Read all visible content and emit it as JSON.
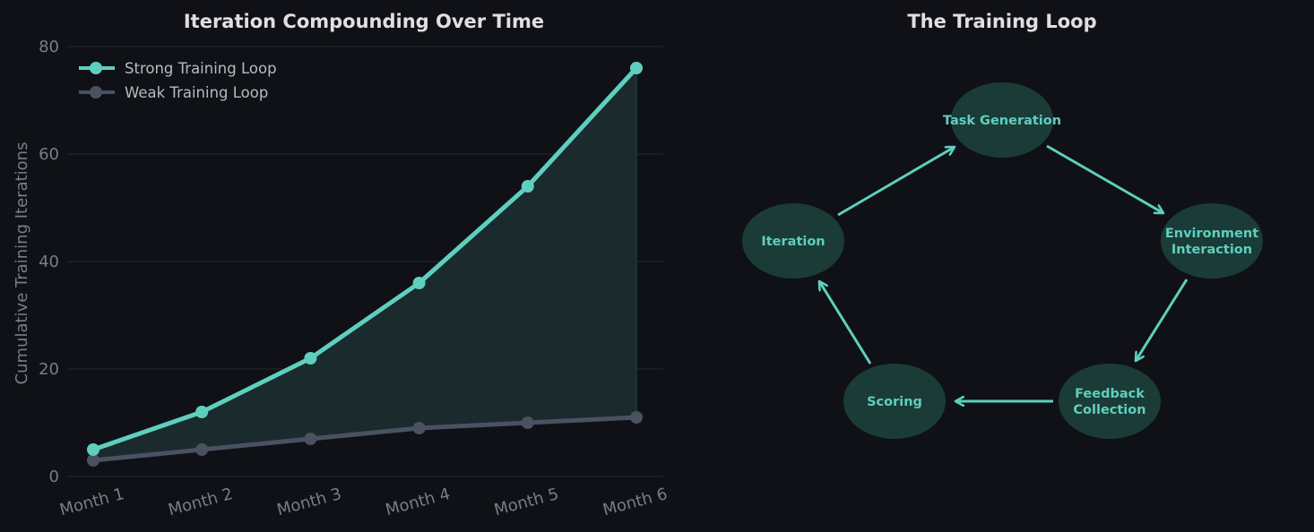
{
  "colors": {
    "background": "#0f1116",
    "strong": "#5ecfbf",
    "weak": "#4a5262",
    "fill": "#1a2a2d",
    "grid": "#22252b",
    "node_fill": "#1b3b36",
    "node_text": "#5ecfbf",
    "arrow": "#5ecfbf"
  },
  "left_chart": {
    "title": "Iteration Compounding Over Time",
    "ylabel": "Cumulative Training Iterations",
    "yticks": [
      "0",
      "20",
      "40",
      "60",
      "80"
    ],
    "xticks": [
      "Month 1",
      "Month 2",
      "Month 3",
      "Month 4",
      "Month 5",
      "Month 6"
    ],
    "legend": [
      "Strong Training Loop",
      "Weak Training Loop"
    ]
  },
  "right_diagram": {
    "title": "The Training Loop",
    "nodes": [
      "Task Generation",
      "Environment Interaction",
      "Feedback Collection",
      "Scoring",
      "Iteration"
    ]
  },
  "chart_data": [
    {
      "type": "line",
      "title": "Iteration Compounding Over Time",
      "xlabel": "",
      "ylabel": "Cumulative Training Iterations",
      "categories": [
        "Month 1",
        "Month 2",
        "Month 3",
        "Month 4",
        "Month 5",
        "Month 6"
      ],
      "series": [
        {
          "name": "Strong Training Loop",
          "values": [
            5,
            12,
            22,
            36,
            54,
            76
          ]
        },
        {
          "name": "Weak Training Loop",
          "values": [
            3,
            5,
            7,
            9,
            10,
            11
          ]
        }
      ],
      "ylim": [
        0,
        80
      ],
      "yticks": [
        0,
        20,
        40,
        60,
        80
      ],
      "grid": "horizontal",
      "legend_position": "upper left",
      "annotations": [
        "shaded area between series"
      ]
    },
    {
      "type": "diagram",
      "title": "The Training Loop",
      "nodes": [
        "Task Generation",
        "Environment Interaction",
        "Feedback Collection",
        "Scoring",
        "Iteration"
      ],
      "edges": [
        [
          "Task Generation",
          "Environment Interaction"
        ],
        [
          "Environment Interaction",
          "Feedback Collection"
        ],
        [
          "Feedback Collection",
          "Scoring"
        ],
        [
          "Scoring",
          "Iteration"
        ],
        [
          "Iteration",
          "Task Generation"
        ]
      ]
    }
  ]
}
